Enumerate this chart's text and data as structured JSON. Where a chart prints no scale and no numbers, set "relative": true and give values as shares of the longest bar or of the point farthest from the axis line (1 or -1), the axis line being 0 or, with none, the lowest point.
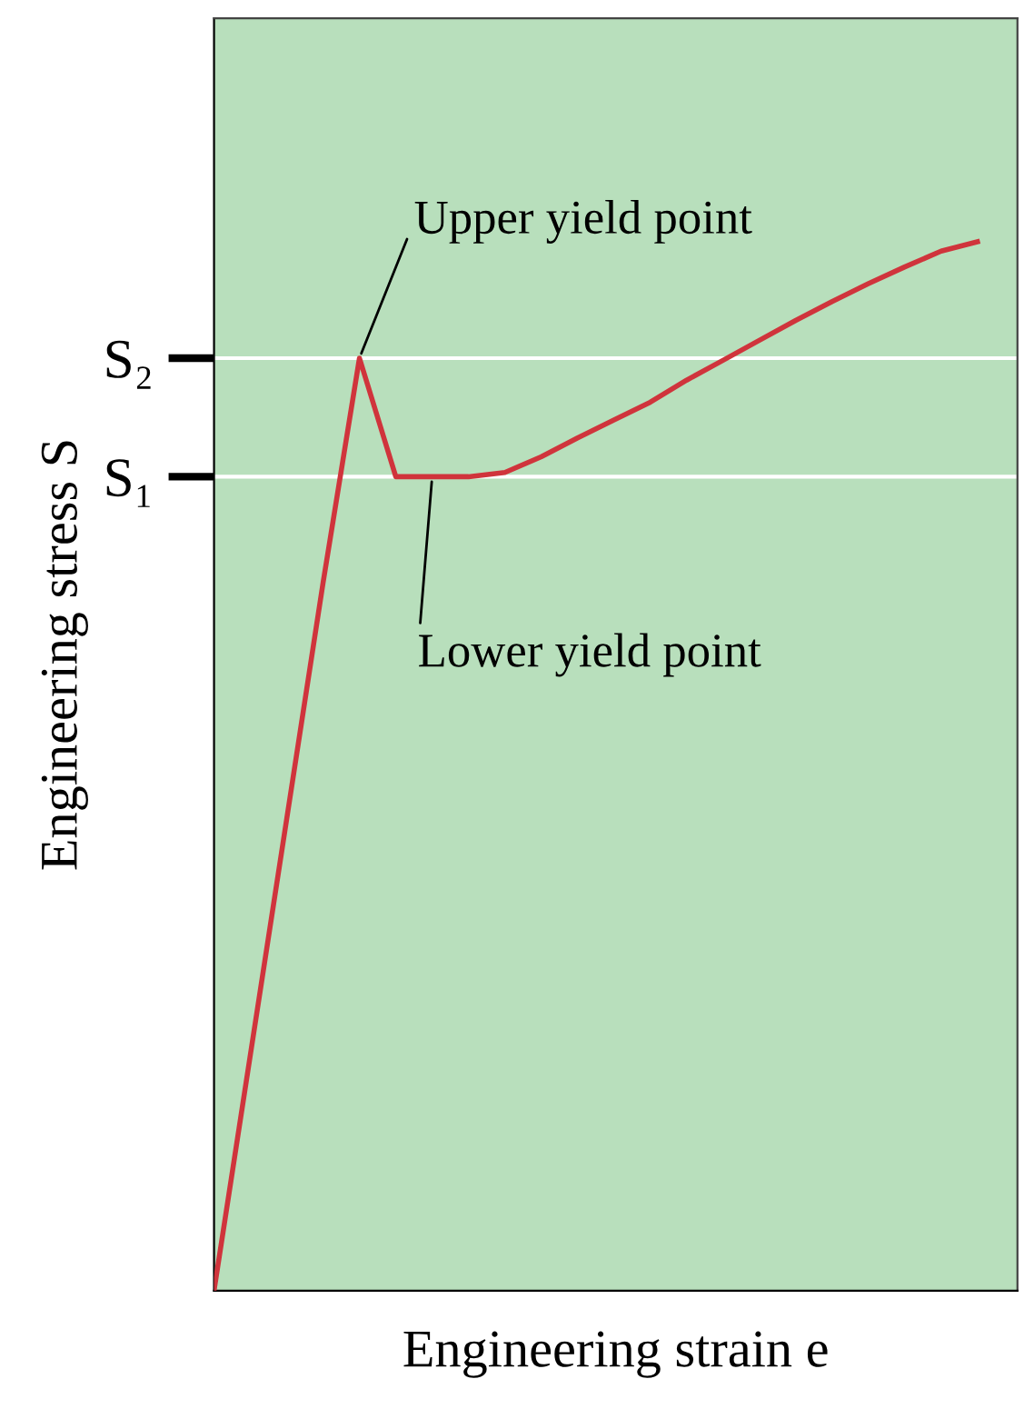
{
  "chart_data": {
    "type": "line",
    "relative": true,
    "xlabel": "Engineering strain e",
    "ylabel": "Engineering stress S",
    "categories": [
      null,
      null,
      null,
      null,
      null,
      null,
      null,
      null,
      null,
      null,
      null,
      null,
      null,
      null,
      null,
      null,
      null,
      null,
      null,
      null,
      null,
      null
    ],
    "series": [
      {
        "color": "#d0343c",
        "values": [
          0,
          0.225,
          0.45,
          0.675,
          0.889,
          0.776,
          0.776,
          0.776,
          0.78,
          0.795,
          0.813,
          0.83,
          0.847,
          0.868,
          0.887,
          0.906,
          0.925,
          0.943,
          0.96,
          0.976,
          0.991,
          1.0
        ]
      }
    ],
    "ref_lines": [
      {
        "axis": "y",
        "value": 0.889,
        "label": "S₂",
        "color": "#ffffff"
      },
      {
        "axis": "y",
        "value": 0.776,
        "label": "S₁",
        "color": "#ffffff"
      }
    ],
    "annotations": [
      "Upper yield point",
      "Lower yield point"
    ],
    "grid": false,
    "legend": false,
    "marker": "none",
    "line_style": "solid"
  }
}
